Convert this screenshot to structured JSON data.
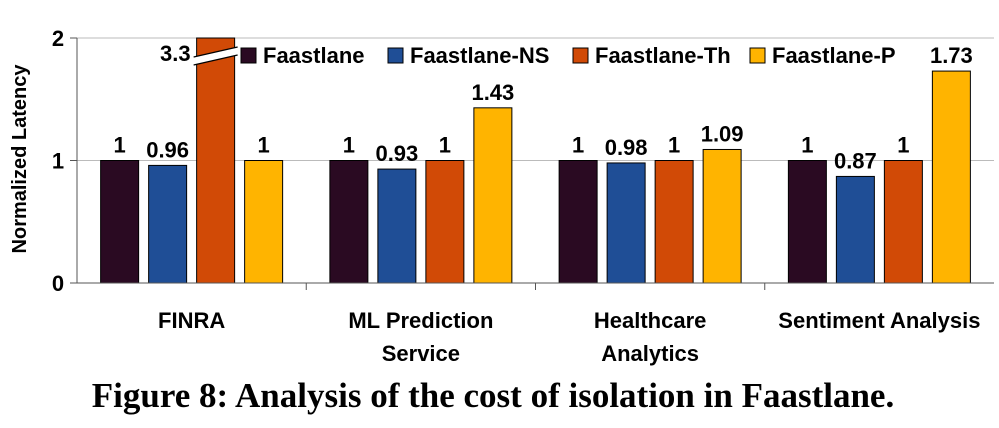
{
  "chart_data": {
    "type": "bar",
    "categories": [
      "FINRA",
      "ML Prediction Service",
      "Healthcare Analytics",
      "Sentiment Analysis"
    ],
    "category_lines": [
      [
        "FINRA"
      ],
      [
        "ML Prediction",
        "Service"
      ],
      [
        "Healthcare",
        "Analytics"
      ],
      [
        "Sentiment Analysis"
      ]
    ],
    "series": [
      {
        "name": "Faastlane",
        "color": "#2a0a22",
        "values": [
          1,
          1,
          1,
          1
        ],
        "labels": [
          "1",
          "1",
          "1",
          "1"
        ]
      },
      {
        "name": "Faastlane-NS",
        "color": "#1f4e96",
        "values": [
          0.96,
          0.93,
          0.98,
          0.87
        ],
        "labels": [
          "0.96",
          "0.93",
          "0.98",
          "0.87"
        ]
      },
      {
        "name": "Faastlane-Th",
        "color": "#d14a06",
        "values": [
          3.3,
          1,
          1,
          1
        ],
        "labels": [
          "3.3",
          "1",
          "1",
          "1"
        ]
      },
      {
        "name": "Faastlane-P",
        "color": "#ffb400",
        "values": [
          1,
          1.43,
          1.09,
          1.73
        ],
        "labels": [
          "1",
          "1.43",
          "1.09",
          "1.73"
        ]
      }
    ],
    "ylabel": "Normalized Latency",
    "ylim": [
      0,
      2
    ],
    "yticks": [
      "0",
      "1",
      "2"
    ],
    "axis_break": true,
    "legend_position": "top",
    "grid": true
  },
  "caption": "Figure 8: Analysis of the cost of isolation in Faastlane."
}
